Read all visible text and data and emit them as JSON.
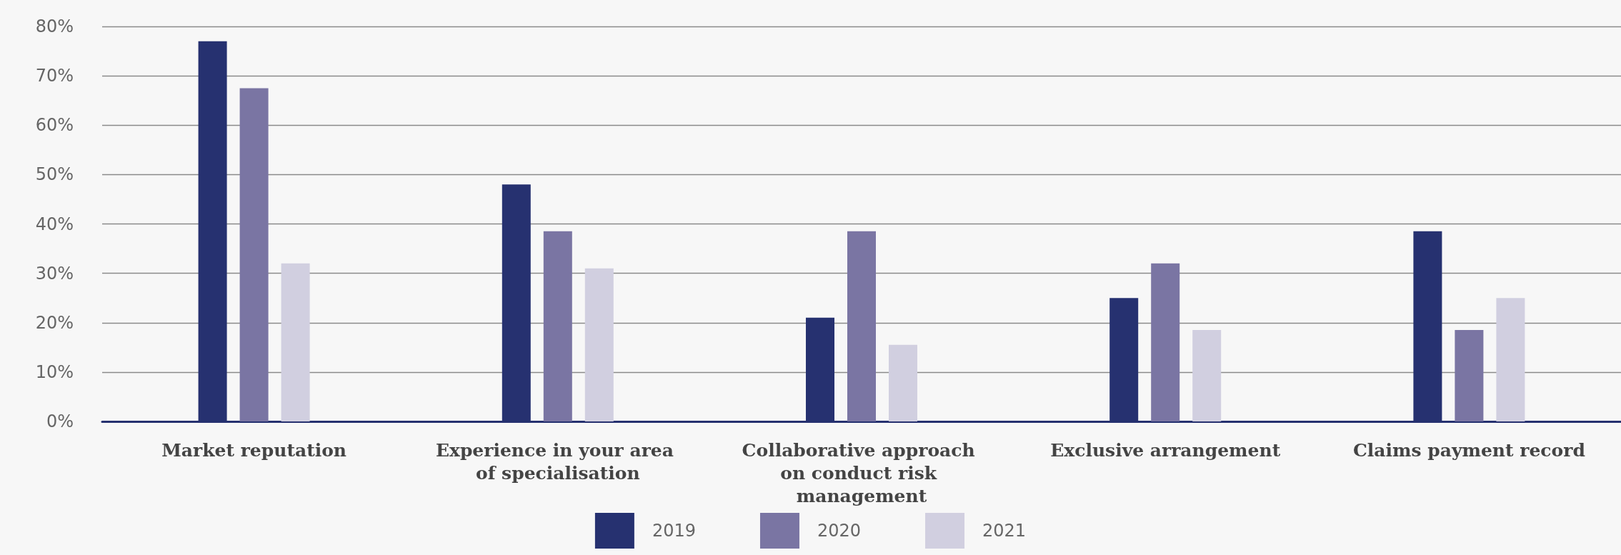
{
  "chart_data": {
    "type": "bar",
    "categories": [
      "Market reputation",
      "Experience in your area of specialisation",
      "Collaborative approach on conduct risk management",
      "Exclusive arrangement",
      "Claims payment record"
    ],
    "series": [
      {
        "name": "2019",
        "color": "#263170",
        "values": [
          77,
          48,
          21,
          25,
          38.5
        ]
      },
      {
        "name": "2020",
        "color": "#7a75a3",
        "values": [
          67.5,
          38.5,
          38.5,
          32,
          18.5
        ]
      },
      {
        "name": "2021",
        "color": "#d1cfe0",
        "values": [
          32,
          31,
          15.5,
          18.5,
          25
        ]
      }
    ],
    "ylim": [
      0,
      80
    ],
    "yticks": [
      {
        "value": 0,
        "label": "0%"
      },
      {
        "value": 10,
        "label": "10%"
      },
      {
        "value": 20,
        "label": "20%"
      },
      {
        "value": 30,
        "label": "30%"
      },
      {
        "value": 40,
        "label": "40%"
      },
      {
        "value": 50,
        "label": "50%"
      },
      {
        "value": 60,
        "label": "60%"
      },
      {
        "value": 70,
        "label": "70%"
      },
      {
        "value": 80,
        "label": "80%"
      }
    ],
    "grid": "y",
    "legend": "bottom"
  }
}
